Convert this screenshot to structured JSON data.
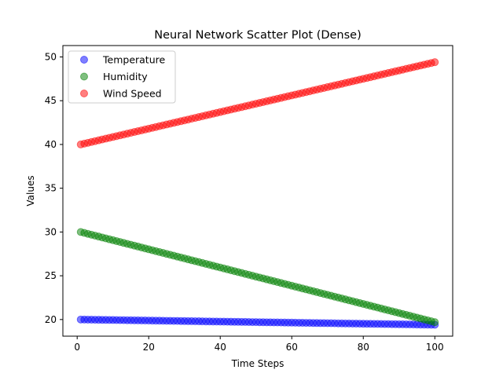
{
  "chart_data": {
    "type": "scatter",
    "title": "Neural Network Scatter Plot (Dense)",
    "xlabel": "Time Steps",
    "ylabel": "Values",
    "xlim": [
      -4,
      105
    ],
    "ylim": [
      18.1,
      51.3
    ],
    "xticks": [
      0,
      20,
      40,
      60,
      80,
      100
    ],
    "yticks": [
      20,
      25,
      30,
      35,
      40,
      45,
      50
    ],
    "grid": false,
    "legend_position": "top-left",
    "x": {
      "start": 1,
      "end": 100,
      "step": 1
    },
    "series": [
      {
        "name": "Temperature",
        "color": "#0000ff",
        "start": 20.0,
        "end": 19.4
      },
      {
        "name": "Humidity",
        "color": "#008000",
        "start": 30.0,
        "end": 19.7
      },
      {
        "name": "Wind Speed",
        "color": "#ff0000",
        "start": 40.0,
        "end": 49.4
      }
    ]
  }
}
